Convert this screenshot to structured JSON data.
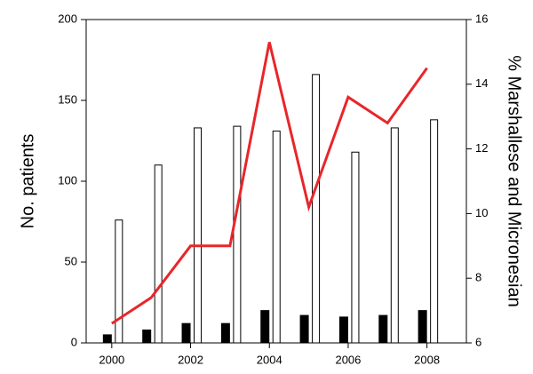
{
  "chart_data": {
    "type": "bar-line",
    "x": [
      2000,
      2001,
      2002,
      2003,
      2004,
      2005,
      2006,
      2007,
      2008
    ],
    "xlim": [
      1999.35,
      2009
    ],
    "xticks": [
      2000,
      2002,
      2004,
      2006,
      2008
    ],
    "ylabel": "No. patients",
    "ylim": [
      0,
      200
    ],
    "yticks": [
      0,
      50,
      100,
      150,
      200
    ],
    "y2label": "% Marshallese and Micronesian",
    "y2lim": [
      6,
      16
    ],
    "y2ticks": [
      6,
      8,
      10,
      12,
      14,
      16
    ],
    "series": [
      {
        "type": "bar",
        "color": "#000000",
        "values": [
          5,
          8,
          12,
          12,
          20,
          17,
          16,
          17,
          20
        ]
      },
      {
        "type": "bar",
        "color": "#ffffff",
        "values": [
          76,
          110,
          133,
          134,
          131,
          166,
          118,
          133,
          138
        ]
      },
      {
        "type": "line",
        "axis": "y2",
        "color": "#e8262a",
        "values": [
          6.6,
          7.4,
          9.0,
          9.0,
          15.3,
          10.2,
          13.6,
          12.8,
          14.5
        ]
      }
    ]
  }
}
